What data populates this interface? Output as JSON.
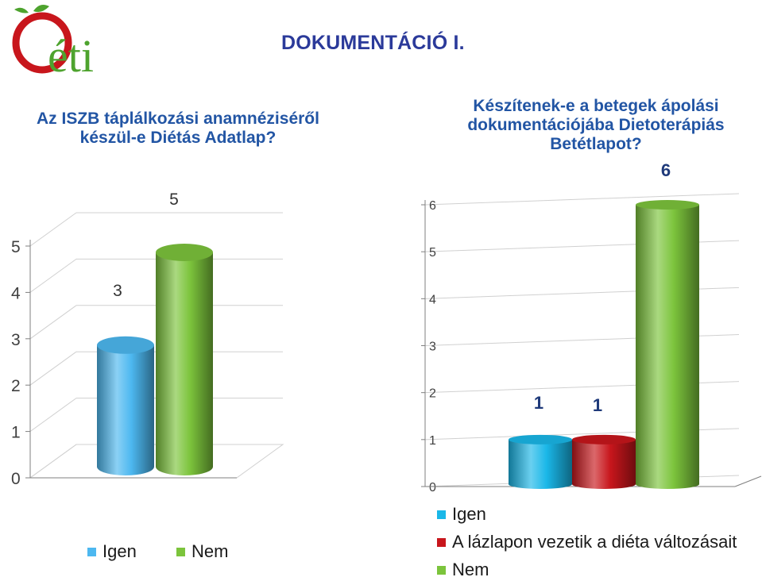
{
  "header": {
    "logo_text": "éti",
    "title": "DOKUMENTÁCIÓ I."
  },
  "colors": {
    "igen": "#4db8f0",
    "nem": "#7cc43c",
    "lazlap": "#c8161c",
    "igen2": "#1ab7e8",
    "title": "#2b3a9a",
    "chart_title": "#2255a4"
  },
  "chart_data": [
    {
      "type": "bar",
      "title": "Az ISZB táplálkozási anamnéziséről készül-e Diétás Adatlap?",
      "categories": [
        "Igen",
        "Nem"
      ],
      "values": [
        3,
        5
      ],
      "data_labels": [
        "3",
        "5"
      ],
      "ylim": [
        0,
        5
      ],
      "y_ticks": [
        "0",
        "1",
        "2",
        "3",
        "4",
        "5"
      ],
      "grid": true,
      "legend": [
        "Igen",
        "Nem"
      ],
      "legend_position": "bottom",
      "style": "3d-cylinder"
    },
    {
      "type": "bar",
      "title": "Készítenek-e a betegek ápolási dokumentációjába Dietoterápiás Betétlapot?",
      "categories": [
        "Igen",
        "A lázlapon vezetik a diéta változásait",
        "Nem"
      ],
      "values": [
        1,
        1,
        6
      ],
      "data_labels": [
        "1",
        "1",
        "6"
      ],
      "ylim": [
        0,
        6
      ],
      "y_ticks": [
        "0",
        "1",
        "2",
        "3",
        "4",
        "5",
        "6"
      ],
      "grid": true,
      "legend": [
        "Igen",
        "A lázlapon vezetik a diéta változásait",
        "Nem"
      ],
      "legend_position": "bottom",
      "style": "3d-cylinder"
    }
  ]
}
